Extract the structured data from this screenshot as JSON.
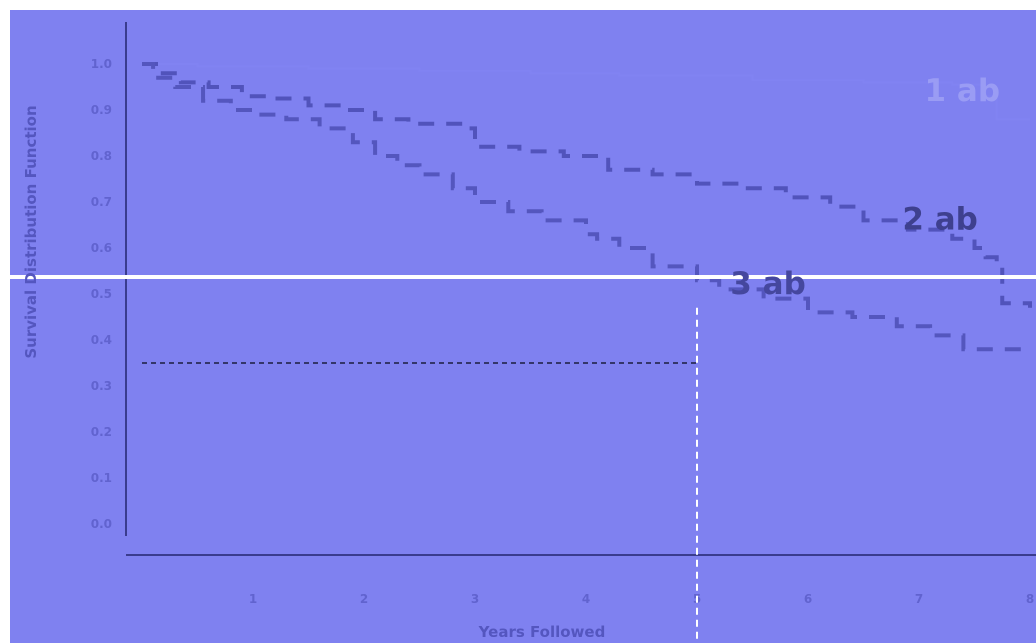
{
  "chart_data": {
    "type": "line",
    "title": "",
    "xlabel": "Years Followed",
    "ylabel": "Survival Distribution Function",
    "xlim": [
      0,
      8
    ],
    "ylim": [
      0,
      1.0
    ],
    "x_ticks": [
      "1",
      "2",
      "3",
      "4",
      "5",
      "6",
      "7",
      "8"
    ],
    "y_ticks": [
      "0.0",
      "0.1",
      "0.2",
      "0.3",
      "0.4",
      "0.5",
      "0.6",
      "0.7",
      "0.8",
      "0.9",
      "1.0"
    ],
    "grid": false,
    "legend": "none",
    "series": [
      {
        "name": "1 ab",
        "color": "#8183f2",
        "style": "solid-step",
        "points": [
          [
            0,
            1.0
          ],
          [
            0.5,
            0.995
          ],
          [
            1.5,
            0.99
          ],
          [
            2.5,
            0.985
          ],
          [
            3.5,
            0.98
          ],
          [
            4.3,
            0.975
          ],
          [
            5.5,
            0.965
          ],
          [
            6.5,
            0.96
          ],
          [
            7.3,
            0.955
          ],
          [
            7.6,
            0.955
          ],
          [
            7.6,
            0.93
          ],
          [
            7.7,
            0.93
          ],
          [
            7.7,
            0.88
          ],
          [
            8.0,
            0.88
          ]
        ]
      },
      {
        "name": "2 ab",
        "color": "#5153bb",
        "style": "dashed-step",
        "points": [
          [
            0,
            1.0
          ],
          [
            0.15,
            0.98
          ],
          [
            0.35,
            0.96
          ],
          [
            0.6,
            0.95
          ],
          [
            0.9,
            0.93
          ],
          [
            1.2,
            0.925
          ],
          [
            1.5,
            0.91
          ],
          [
            1.8,
            0.9
          ],
          [
            2.1,
            0.88
          ],
          [
            2.4,
            0.87
          ],
          [
            2.9,
            0.86
          ],
          [
            3.0,
            0.82
          ],
          [
            3.4,
            0.81
          ],
          [
            3.8,
            0.8
          ],
          [
            4.2,
            0.77
          ],
          [
            4.6,
            0.76
          ],
          [
            5.0,
            0.74
          ],
          [
            5.4,
            0.73
          ],
          [
            5.8,
            0.71
          ],
          [
            6.2,
            0.69
          ],
          [
            6.5,
            0.66
          ],
          [
            6.9,
            0.64
          ],
          [
            7.3,
            0.62
          ],
          [
            7.5,
            0.6
          ],
          [
            7.6,
            0.58
          ],
          [
            7.7,
            0.56
          ],
          [
            7.75,
            0.48
          ],
          [
            7.8,
            0.48
          ],
          [
            8.0,
            0.47
          ]
        ]
      },
      {
        "name": "3 ab",
        "color": "#5456be",
        "style": "dashed-step",
        "points": [
          [
            0,
            1.0
          ],
          [
            0.1,
            0.97
          ],
          [
            0.3,
            0.95
          ],
          [
            0.55,
            0.92
          ],
          [
            0.8,
            0.9
          ],
          [
            1.0,
            0.89
          ],
          [
            1.3,
            0.88
          ],
          [
            1.6,
            0.86
          ],
          [
            1.9,
            0.83
          ],
          [
            2.1,
            0.8
          ],
          [
            2.3,
            0.78
          ],
          [
            2.5,
            0.76
          ],
          [
            2.8,
            0.73
          ],
          [
            3.0,
            0.7
          ],
          [
            3.3,
            0.68
          ],
          [
            3.6,
            0.66
          ],
          [
            4.0,
            0.63
          ],
          [
            4.1,
            0.62
          ],
          [
            4.3,
            0.6
          ],
          [
            4.6,
            0.56
          ],
          [
            5.0,
            0.53
          ],
          [
            5.2,
            0.51
          ],
          [
            5.6,
            0.49
          ],
          [
            6.0,
            0.46
          ],
          [
            6.4,
            0.45
          ],
          [
            6.8,
            0.43
          ],
          [
            7.1,
            0.41
          ],
          [
            7.4,
            0.41
          ],
          [
            7.4,
            0.38
          ],
          [
            7.6,
            0.38
          ],
          [
            8.0,
            0.38
          ]
        ]
      }
    ],
    "reference_lines": [
      {
        "type": "horizontal",
        "y": 0.35,
        "from_x": 0,
        "to_x": 5,
        "color": "#1c1d3d"
      },
      {
        "type": "vertical",
        "x": 5,
        "from_y": 0.47,
        "to_y": -0.18,
        "color": "#ffffff"
      }
    ],
    "separator": {
      "type": "horizontal",
      "y": 0.55,
      "color": "#ffffff"
    }
  }
}
